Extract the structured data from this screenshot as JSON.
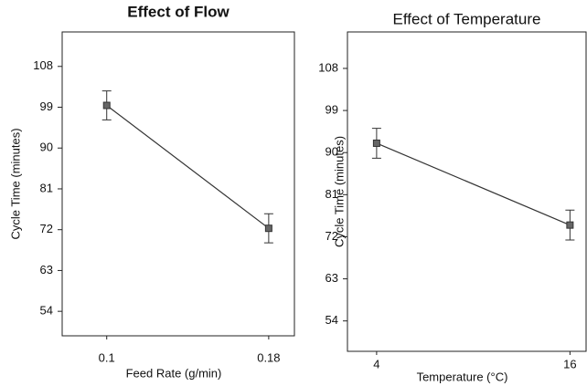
{
  "chart_data": [
    {
      "type": "line",
      "title": "Effect of Flow",
      "title_weight": "bold",
      "x_label": "Feed Rate (g/min)",
      "y_label": "Cycle Time (minutes)",
      "x": [
        0.1,
        0.18
      ],
      "values": [
        99.4,
        72.3
      ],
      "errors": [
        3.2,
        3.2
      ],
      "color": "#333333",
      "xlim": [
        0.078,
        0.1927
      ],
      "xticks": [
        0.1,
        0.18
      ],
      "ylim": [
        48.6,
        115.6
      ],
      "yticks": [
        54,
        63,
        72,
        81,
        90,
        99,
        108
      ]
    },
    {
      "type": "line",
      "title": "Effect of Temperature",
      "title_weight": "normal",
      "x_label": "Temperature (°C)",
      "y_label": "Cycle Time (minutes)",
      "x": [
        4,
        16
      ],
      "values": [
        92,
        74.5
      ],
      "errors": [
        3.2,
        3.2
      ],
      "color": "#333333",
      "xlim": [
        2.19,
        17.0
      ],
      "xticks": [
        4,
        16
      ],
      "ylim": [
        47.5,
        115.8
      ],
      "yticks": [
        54,
        63,
        72,
        81,
        90,
        99,
        108
      ]
    }
  ]
}
